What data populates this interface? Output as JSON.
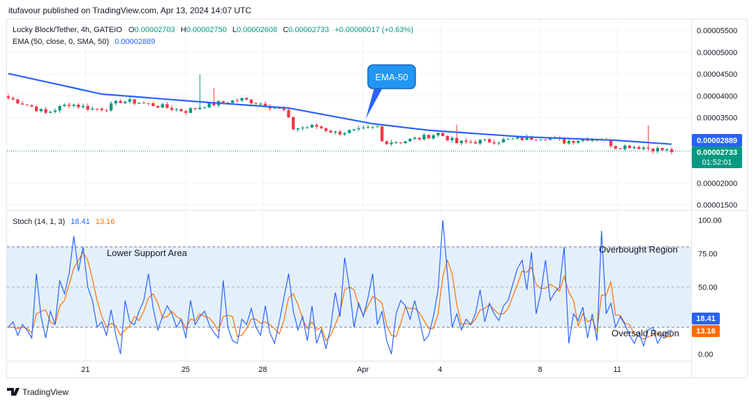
{
  "publisher_line": "itufavour published on TradingView.com, Apr 13, 2024 14:07 UTC",
  "branding": "TradingView",
  "colors": {
    "up": "#089981",
    "down": "#f23645",
    "ema": "#2962ff",
    "stoch_k": "#2962ff",
    "stoch_d": "#ff6d00",
    "band_fill": "#e3f0fc",
    "grid": "#f0f3fa",
    "text": "#131722",
    "axis_text": "#131722"
  },
  "header": {
    "symbol": "Lucky Block/Tether, 4h, GATEIO",
    "o_label": "O",
    "o_value": "0.00002703",
    "h_label": "H",
    "h_value": "0.00002750",
    "l_label": "L",
    "l_value": "0.00002608",
    "c_label": "C",
    "c_value": "0.00002733",
    "change": "+0.00000017 (+0.63%)",
    "ema_label": "EMA (50, close, 0, SMA, 50)",
    "ema_value": "0.00002889"
  },
  "annotations": {
    "ema_callout": "EMA-50",
    "lower_support": "Lower Support Area",
    "overbought": "Overbought Region",
    "oversold": "Oversold Region"
  },
  "price_axis": {
    "ticks": [
      "0.00005500",
      "0.00005000",
      "0.00004500",
      "0.00004000",
      "0.00003500",
      "0.00002000",
      "0.00001500"
    ],
    "tick_values": [
      5.5e-05,
      5e-05,
      4.5e-05,
      4e-05,
      3.5e-05,
      2e-05,
      1.5e-05
    ],
    "ema_badge": "0.00002889",
    "last_badge": "0.00002733",
    "countdown": "01:52:01"
  },
  "stoch": {
    "label": "Stoch (14, 1, 3)",
    "k_value": "18.41",
    "d_value": "13.16",
    "axis_ticks": [
      "100.00",
      "75.00",
      "50.00",
      "25.00",
      "0.00"
    ],
    "axis_values": [
      100,
      75,
      50,
      25,
      0
    ],
    "band_upper": 80,
    "band_lower": 20
  },
  "time_axis": {
    "labels": [
      "21",
      "25",
      "28",
      "Apr",
      "4",
      "8",
      "11"
    ]
  },
  "chart_data": [
    {
      "type": "candlestick",
      "title": "Lucky Block/Tether, 4h, GATEIO",
      "ylim": [
        1.38e-05,
        5.75e-05
      ],
      "x_count": 143,
      "key_points": [
        [
          0,
          3.95e-05
        ],
        [
          5,
          3.75e-05
        ],
        [
          8,
          3.6e-05
        ],
        [
          13,
          3.82e-05
        ],
        [
          18,
          3.7e-05
        ],
        [
          21,
          3.72e-05
        ],
        [
          24,
          3.88e-05
        ],
        [
          28,
          3.85e-05
        ],
        [
          33,
          3.75e-05
        ],
        [
          38,
          3.65e-05
        ],
        [
          42,
          3.78e-05
        ],
        [
          46,
          3.85e-05
        ],
        [
          50,
          3.92e-05
        ],
        [
          55,
          3.8e-05
        ],
        [
          59,
          3.66e-05
        ],
        [
          61,
          3.25e-05
        ],
        [
          66,
          3.3e-05
        ],
        [
          70,
          3.15e-05
        ],
        [
          75,
          3.2e-05
        ],
        [
          79,
          3.28e-05
        ],
        [
          80,
          2.95e-05
        ],
        [
          84,
          2.95e-05
        ],
        [
          89,
          3.05e-05
        ],
        [
          92,
          3.14e-05
        ],
        [
          96,
          2.92e-05
        ],
        [
          100,
          2.95e-05
        ],
        [
          105,
          2.97e-05
        ],
        [
          110,
          3.02e-05
        ],
        [
          115,
          3.05e-05
        ],
        [
          119,
          2.95e-05
        ],
        [
          124,
          3.02e-05
        ],
        [
          127,
          3.02e-05
        ],
        [
          130,
          2.83e-05
        ],
        [
          133,
          2.85e-05
        ],
        [
          137,
          2.8e-05
        ],
        [
          142,
          2.73e-05
        ]
      ],
      "spikes": [
        {
          "index": 41,
          "high": 4.49e-05
        },
        {
          "index": 44,
          "high": 4.18e-05
        },
        {
          "index": 96,
          "high": 3.34e-05
        },
        {
          "index": 137,
          "high": 3.32e-05
        }
      ]
    },
    {
      "type": "line",
      "title": "EMA (50, close, 0, SMA, 50)",
      "series": [
        {
          "name": "EMA (50, close, 0, SMA, 50)",
          "x": [
            0,
            20,
            40,
            60,
            78,
            90,
            110,
            130,
            142
          ],
          "values": [
            4.51e-05,
            4.04e-05,
            3.87e-05,
            3.72e-05,
            3.36e-05,
            3.21e-05,
            3.06e-05,
            2.98e-05,
            2.89e-05
          ]
        }
      ]
    },
    {
      "type": "line",
      "title": "Stoch (14, 1, 3)",
      "ylim": [
        -5,
        107
      ],
      "series": [
        {
          "name": "%K",
          "values": [
            20,
            24,
            14,
            22,
            18,
            12,
            60,
            28,
            12,
            32,
            22,
            55,
            45,
            60,
            88,
            62,
            80,
            50,
            40,
            20,
            24,
            14,
            33,
            14,
            0,
            40,
            24,
            22,
            32,
            40,
            60,
            34,
            18,
            28,
            36,
            30,
            20,
            26,
            12,
            40,
            22,
            28,
            32,
            22,
            16,
            12,
            55,
            20,
            10,
            8,
            26,
            22,
            34,
            20,
            14,
            36,
            16,
            8,
            24,
            42,
            60,
            32,
            18,
            28,
            10,
            36,
            8,
            18,
            4,
            20,
            46,
            28,
            72,
            50,
            20,
            38,
            28,
            42,
            60,
            22,
            32,
            10,
            0,
            30,
            40,
            36,
            26,
            40,
            26,
            10,
            14,
            28,
            48,
            100,
            60,
            20,
            30,
            18,
            26,
            22,
            30,
            48,
            24,
            38,
            30,
            25,
            36,
            40,
            52,
            64,
            70,
            48,
            76,
            30,
            46,
            70,
            40,
            46,
            50,
            80,
            8,
            30,
            25,
            35,
            12,
            30,
            10,
            92,
            30,
            38,
            20,
            28,
            22,
            14,
            8,
            16,
            6,
            18,
            20,
            8,
            14,
            16,
            18
          ],
          "count": 143
        },
        {
          "name": "%D",
          "values": [
            20,
            20,
            19,
            20,
            19,
            16,
            30,
            32,
            33,
            24,
            22,
            36,
            40,
            52,
            64,
            70,
            76,
            70,
            56,
            40,
            28,
            20,
            23,
            21,
            14,
            18,
            21,
            28,
            25,
            32,
            42,
            45,
            38,
            27,
            28,
            32,
            28,
            26,
            19,
            26,
            25,
            30,
            28,
            27,
            23,
            17,
            28,
            29,
            28,
            13,
            14,
            19,
            26,
            26,
            23,
            24,
            22,
            19,
            15,
            25,
            42,
            45,
            37,
            26,
            19,
            24,
            18,
            20,
            10,
            14,
            22,
            31,
            48,
            50,
            48,
            36,
            29,
            36,
            43,
            41,
            38,
            21,
            14,
            13,
            23,
            35,
            34,
            34,
            31,
            25,
            19,
            19,
            30,
            58,
            70,
            60,
            37,
            22,
            23,
            22,
            26,
            33,
            34,
            37,
            33,
            30,
            30,
            34,
            43,
            52,
            62,
            61,
            65,
            52,
            49,
            49,
            52,
            50,
            47,
            58,
            46,
            40,
            21,
            30,
            24,
            26,
            17,
            44,
            44,
            54,
            29,
            29,
            23,
            22,
            15,
            13,
            11,
            13,
            14,
            15,
            14,
            13,
            13
          ],
          "count": 143
        }
      ],
      "ylabel": ""
    }
  ]
}
